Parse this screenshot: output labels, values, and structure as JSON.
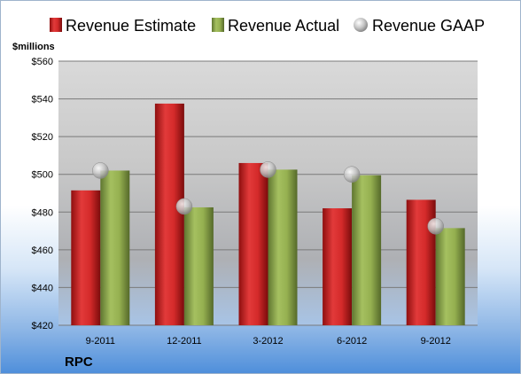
{
  "chart_data": {
    "type": "bar",
    "unit_label": "$millions",
    "company": "RPC",
    "categories": [
      "9-2011",
      "12-2011",
      "3-2012",
      "6-2012",
      "9-2012"
    ],
    "series": [
      {
        "name": "Revenue Estimate",
        "kind": "bar",
        "color": "#cc2222",
        "values": [
          491.5,
          537.5,
          506,
          482,
          486.5
        ]
      },
      {
        "name": "Revenue Actual",
        "kind": "bar",
        "color": "#8aa34a",
        "values": [
          502,
          482.5,
          502.5,
          499.5,
          471.5
        ]
      },
      {
        "name": "Revenue GAAP",
        "kind": "marker",
        "color": "#c9c9c9",
        "values": [
          502,
          483,
          502.5,
          500,
          472.5
        ]
      }
    ],
    "ylim": [
      420,
      560
    ],
    "yticks": [
      "$420",
      "$440",
      "$460",
      "$480",
      "$500",
      "$520",
      "$540",
      "$560"
    ],
    "grid": true,
    "legend_position": "top"
  }
}
